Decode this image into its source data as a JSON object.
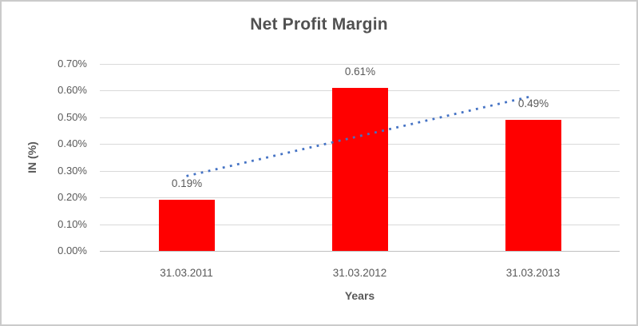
{
  "chart_data": {
    "type": "bar",
    "title": "Net Profit Margin",
    "xlabel": "Years",
    "ylabel": "IN (%)",
    "categories": [
      "31.03.2011",
      "31.03.2012",
      "31.03.2013"
    ],
    "series": [
      {
        "name": "Net Profit Margin",
        "values": [
          0.19,
          0.61,
          0.49
        ]
      }
    ],
    "value_labels": [
      "0.19%",
      "0.61%",
      "0.49%"
    ],
    "y_ticks": [
      "0.00%",
      "0.10%",
      "0.20%",
      "0.30%",
      "0.40%",
      "0.50%",
      "0.60%",
      "0.70%"
    ],
    "ylim": [
      0,
      0.7
    ],
    "grid": true,
    "legend_position": "none",
    "trendline": {
      "type": "linear",
      "style": "dotted",
      "start_value": 0.28,
      "end_value": 0.58
    },
    "colors": {
      "bar": "#FF0000",
      "trendline": "#4472C4",
      "gridline": "#D9D9D9",
      "axis_line": "#BFBFBF",
      "text": "#595959",
      "title": "#515151",
      "border": "#CBCBCB"
    }
  }
}
